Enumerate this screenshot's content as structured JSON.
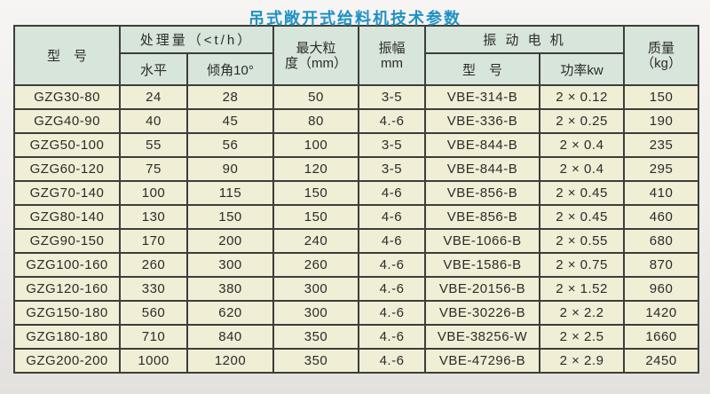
{
  "title": "吊式敞开式给料机技术参数",
  "colors": {
    "title_blue": "#1e91c6",
    "header_bg": "#d8e5da",
    "row_bg": "#f0eed5",
    "grid_line": "#3d3d3b",
    "page_bg": "#efedea",
    "text": "#2b2b2a"
  },
  "table": {
    "header": {
      "model": "型　号",
      "capacity_group": "处理量（<t/h）",
      "capacity_horizontal": "水平",
      "capacity_incline": "倾角10°",
      "max_particle_line1": "最大粒",
      "max_particle_line2": "度（mm）",
      "amplitude_line1": "振幅",
      "amplitude_line2": "mm",
      "motor_group": "振 动 电 机",
      "motor_model": "型　号",
      "motor_power": "功率kw",
      "mass_line1": "质量",
      "mass_line2": "（kg）"
    },
    "rows": [
      [
        "GZG30-80",
        "24",
        "28",
        "50",
        "3-5",
        "VBE-314-B",
        "2 × 0.12",
        "150"
      ],
      [
        "GZG40-90",
        "40",
        "45",
        "80",
        "4.-6",
        "VBE-336-B",
        "2 × 0.25",
        "190"
      ],
      [
        "GZG50-100",
        "55",
        "56",
        "100",
        "3-5",
        "VBE-844-B",
        "2 × 0.4",
        "235"
      ],
      [
        "GZG60-120",
        "75",
        "90",
        "120",
        "3-5",
        "VBE-844-B",
        "2 × 0.4",
        "295"
      ],
      [
        "GZG70-140",
        "100",
        "115",
        "150",
        "4-6",
        "VBE-856-B",
        "2 × 0.45",
        "410"
      ],
      [
        "GZG80-140",
        "130",
        "150",
        "150",
        "4-6",
        "VBE-856-B",
        "2 × 0.45",
        "460"
      ],
      [
        "GZG90-150",
        "170",
        "200",
        "240",
        "4-6",
        "VBE-1066-B",
        "2 × 0.55",
        "680"
      ],
      [
        "GZG100-160",
        "260",
        "300",
        "260",
        "4.-6",
        "VBE-1586-B",
        "2 × 0.75",
        "870"
      ],
      [
        "GZG120-160",
        "330",
        "380",
        "300",
        "4.-6",
        "VBE-20156-B",
        "2 × 1.52",
        "960"
      ],
      [
        "GZG150-180",
        "560",
        "620",
        "300",
        "4.-6",
        "VBE-30226-B",
        "2 × 2.2",
        "1420"
      ],
      [
        "GZG180-180",
        "710",
        "840",
        "350",
        "4.-6",
        "VBE-38256-W",
        "2 × 2.5",
        "1660"
      ],
      [
        "GZG200-200",
        "1000",
        "1200",
        "350",
        "4.-6",
        "VBE-47296-B",
        "2 × 2.9",
        "2450"
      ]
    ]
  }
}
